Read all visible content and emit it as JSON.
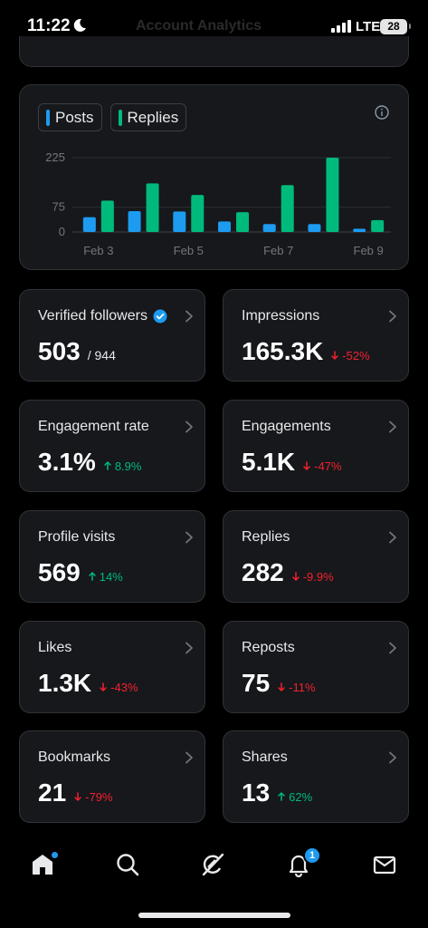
{
  "status_bar": {
    "time": "11:22",
    "network": "LTE",
    "battery": "28"
  },
  "header": {
    "faded_title": "Account Analytics"
  },
  "chart_data": {
    "type": "bar",
    "categories": [
      "Feb 3",
      "Feb 4",
      "Feb 5",
      "Feb 6",
      "Feb 7",
      "Feb 8",
      "Feb 9"
    ],
    "x_tick_labels": [
      "Feb 3",
      "Feb 5",
      "Feb 7",
      "Feb 9"
    ],
    "y_ticks": [
      "225",
      "75",
      "0"
    ],
    "ylim": [
      0,
      225
    ],
    "series": [
      {
        "name": "Posts",
        "color": "#1d9bf0",
        "values": [
          45,
          63,
          62,
          32,
          24,
          24,
          10
        ]
      },
      {
        "name": "Replies",
        "color": "#00ba7c",
        "values": [
          95,
          147,
          112,
          60,
          142,
          225,
          36
        ]
      }
    ],
    "legend": "top-left"
  },
  "stats": [
    {
      "label": "Verified followers",
      "value": "503",
      "sub": "/ 944",
      "delta": "",
      "trend": "none",
      "verified": true
    },
    {
      "label": "Impressions",
      "value": "165.3K",
      "sub": "",
      "delta": "-52%",
      "trend": "down"
    },
    {
      "label": "Engagement rate",
      "value": "3.1%",
      "sub": "",
      "delta": "8.9%",
      "trend": "up"
    },
    {
      "label": "Engagements",
      "value": "5.1K",
      "sub": "",
      "delta": "-47%",
      "trend": "down"
    },
    {
      "label": "Profile visits",
      "value": "569",
      "sub": "",
      "delta": "14%",
      "trend": "up"
    },
    {
      "label": "Replies",
      "value": "282",
      "sub": "",
      "delta": "-9.9%",
      "trend": "down"
    },
    {
      "label": "Likes",
      "value": "1.3K",
      "sub": "",
      "delta": "-43%",
      "trend": "down"
    },
    {
      "label": "Reposts",
      "value": "75",
      "sub": "",
      "delta": "-11%",
      "trend": "down"
    },
    {
      "label": "Bookmarks",
      "value": "21",
      "sub": "",
      "delta": "-79%",
      "trend": "down"
    },
    {
      "label": "Shares",
      "value": "13",
      "sub": "",
      "delta": "62%",
      "trend": "up"
    }
  ],
  "nav": {
    "items": [
      "home-icon",
      "search-icon",
      "grok-icon",
      "notifications-icon",
      "messages-icon"
    ],
    "notification_count": "1"
  },
  "colors": {
    "up": "#00ba7c",
    "down": "#f4212e",
    "accent": "#1d9bf0"
  }
}
